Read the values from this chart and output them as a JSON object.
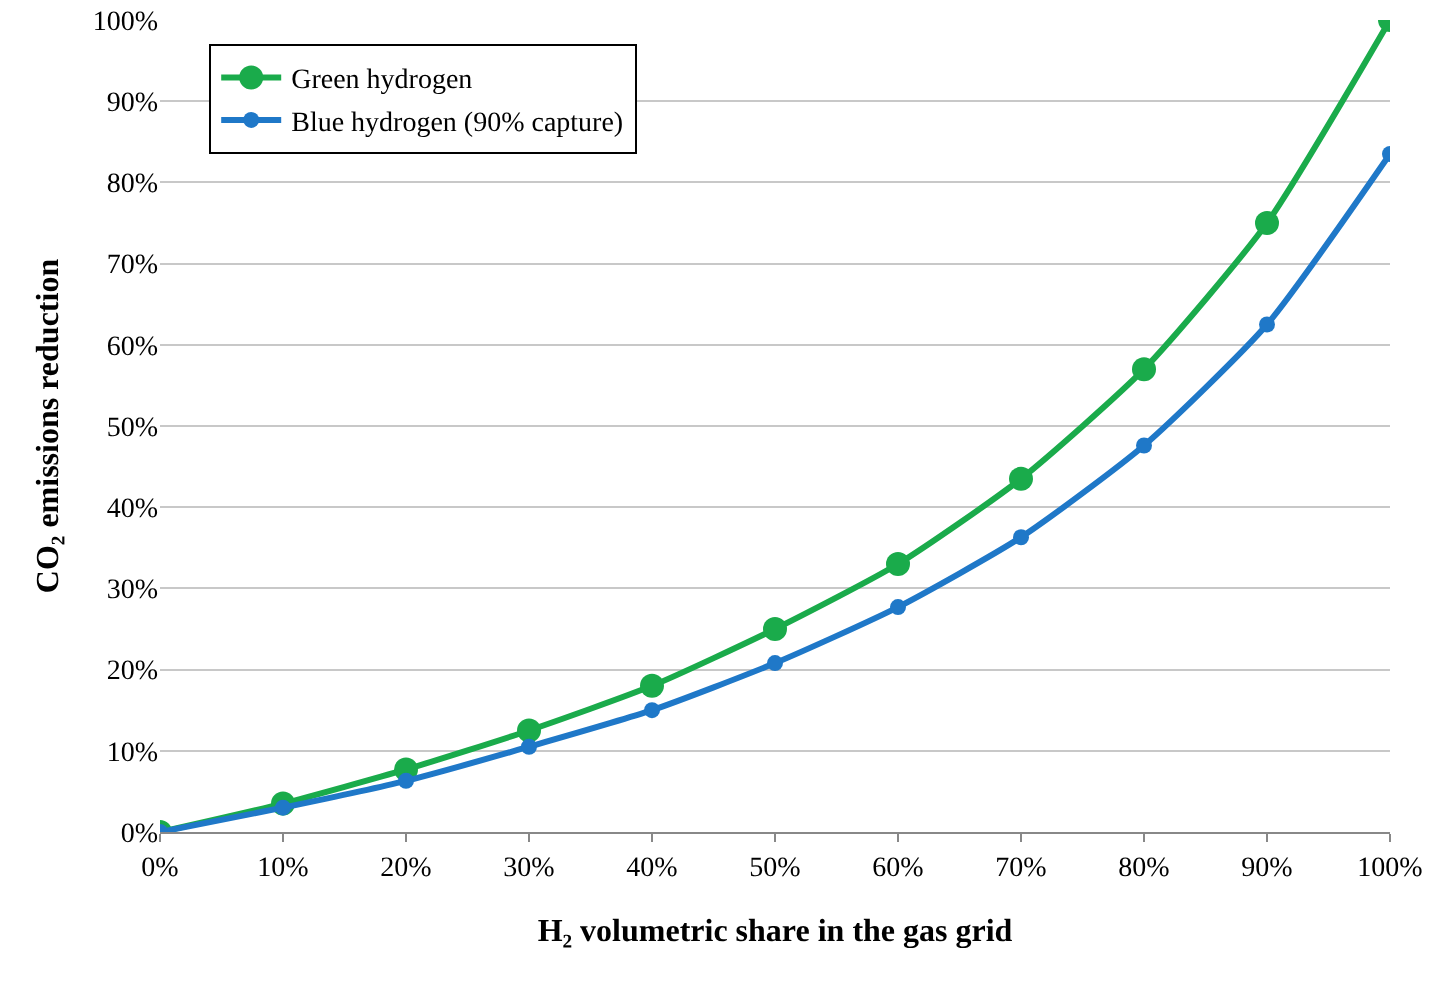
{
  "chart_data": {
    "type": "line",
    "xlabel": "H₂ volumetric share in the gas grid",
    "ylabel": "CO₂ emissions reduction",
    "x": [
      0,
      10,
      20,
      30,
      40,
      50,
      60,
      70,
      80,
      90,
      100
    ],
    "series": [
      {
        "name": "Green hydrogen",
        "color": "#1aab4b",
        "values": [
          0,
          3.5,
          7.7,
          12.5,
          18,
          25,
          33,
          43.5,
          57,
          75,
          100
        ]
      },
      {
        "name": "Blue hydrogen (90% capture)",
        "color": "#1f78c8",
        "values": [
          0,
          3,
          6.3,
          10.5,
          15,
          20.8,
          27.7,
          36.3,
          47.6,
          62.5,
          83.5
        ]
      }
    ],
    "xlim": [
      0,
      100
    ],
    "ylim": [
      0,
      100
    ],
    "xticks": [
      {
        "value": 0,
        "label": "0%"
      },
      {
        "value": 10,
        "label": "10%"
      },
      {
        "value": 20,
        "label": "20%"
      },
      {
        "value": 30,
        "label": "30%"
      },
      {
        "value": 40,
        "label": "40%"
      },
      {
        "value": 50,
        "label": "50%"
      },
      {
        "value": 60,
        "label": "60%"
      },
      {
        "value": 70,
        "label": "70%"
      },
      {
        "value": 80,
        "label": "80%"
      },
      {
        "value": 90,
        "label": "90%"
      },
      {
        "value": 100,
        "label": "100%"
      }
    ],
    "yticks": [
      {
        "value": 0,
        "label": "0%"
      },
      {
        "value": 10,
        "label": "10%"
      },
      {
        "value": 20,
        "label": "20%"
      },
      {
        "value": 30,
        "label": "30%"
      },
      {
        "value": 40,
        "label": "40%"
      },
      {
        "value": 50,
        "label": "50%"
      },
      {
        "value": 60,
        "label": "60%"
      },
      {
        "value": 70,
        "label": "70%"
      },
      {
        "value": 80,
        "label": "80%"
      },
      {
        "value": 90,
        "label": "90%"
      },
      {
        "value": 100,
        "label": "100%"
      }
    ],
    "grid": "y",
    "legend": "top left",
    "marker": "circle",
    "line_style": "solid"
  }
}
